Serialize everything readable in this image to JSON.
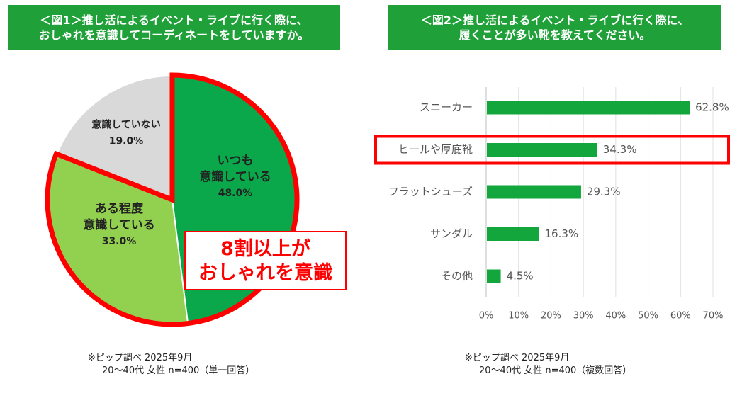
{
  "figure1": {
    "title_lines": [
      "＜図1＞推し活によるイベント・ライブに行く際に、",
      "おしゃれを意識してコーディネートをしていますか。"
    ],
    "callout_lines": [
      "8割以上が",
      "おしゃれを意識"
    ],
    "note_lines": [
      "※ピップ調べ 2025年9月",
      "20〜40代 女性 n=400（単一回答）"
    ]
  },
  "figure2": {
    "title_lines": [
      "＜図2＞推し活によるイベント・ライブに行く際に、",
      "履くことが多い靴を教えてください。"
    ],
    "note_lines": [
      "※ピップ調べ 2025年9月",
      "20〜40代 女性 n=400（複数回答）"
    ]
  },
  "colors": {
    "banner": "#1fa038",
    "dark_green": "#0aa84a",
    "light_green": "#92d050",
    "gray": "#d9d9d9",
    "highlight_red": "#ff0000",
    "bar": "#12a63c"
  },
  "chart_data": [
    {
      "type": "pie",
      "slices": [
        {
          "label_lines": [
            "いつも",
            "意識している"
          ],
          "value": 48.0,
          "value_label": "48.0%",
          "color": "#0aa84a",
          "highlighted": true
        },
        {
          "label_lines": [
            "ある程度",
            "意識している"
          ],
          "value": 33.0,
          "value_label": "33.0%",
          "color": "#92d050",
          "highlighted": true
        },
        {
          "label_lines": [
            "意識していない"
          ],
          "value": 19.0,
          "value_label": "19.0%",
          "color": "#d9d9d9",
          "highlighted": false
        }
      ]
    },
    {
      "type": "bar",
      "orientation": "horizontal",
      "categories": [
        "スニーカー",
        "ヒールや厚底靴",
        "フラットシューズ",
        "サンダル",
        "その他"
      ],
      "values": [
        62.8,
        34.3,
        29.3,
        16.3,
        4.5
      ],
      "value_labels": [
        "62.8%",
        "34.3%",
        "29.3%",
        "16.3%",
        "4.5%"
      ],
      "highlighted_category": "ヒールや厚底靴",
      "xlim": [
        0,
        70
      ],
      "xticks": [
        0,
        10,
        20,
        30,
        40,
        50,
        60,
        70
      ],
      "xtick_labels": [
        "0%",
        "10%",
        "20%",
        "30%",
        "40%",
        "50%",
        "60%",
        "70%"
      ],
      "grid": true
    }
  ]
}
